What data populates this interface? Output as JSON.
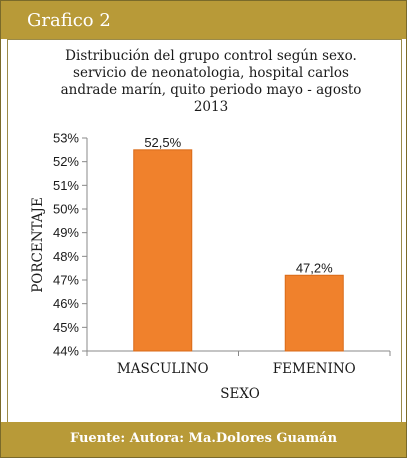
{
  "header": {
    "title": "Grafico 2"
  },
  "footer": {
    "text": "Fuente: Autora: Ma.Dolores Guamán"
  },
  "colors": {
    "bar": "#f0812c",
    "bar_edge": "#d96a18",
    "header_bg": "#b89a38"
  },
  "chart_data": {
    "type": "bar",
    "title_lines": [
      "Distribución del grupo control según sexo.",
      "servicio de neonatologia, hospital carlos",
      "andrade marín, quito periodo mayo - agosto",
      "2013"
    ],
    "categories": [
      "MASCULINO",
      "FEMENINO"
    ],
    "values": [
      52.5,
      47.2
    ],
    "value_labels": [
      "52,5%",
      "47,2%"
    ],
    "xlabel": "SEXO",
    "ylabel": "PORCENTAJE",
    "ylim": [
      44,
      53
    ],
    "yticks": [
      {
        "v": 53,
        "label": "53%"
      },
      {
        "v": 52,
        "label": "52%"
      },
      {
        "v": 51,
        "label": "51%"
      },
      {
        "v": 50,
        "label": "50%"
      },
      {
        "v": 49,
        "label": "49%"
      },
      {
        "v": 48,
        "label": "48%"
      },
      {
        "v": 47,
        "label": "47%"
      },
      {
        "v": 46,
        "label": "46%"
      },
      {
        "v": 45,
        "label": "45%"
      },
      {
        "v": 44,
        "label": "44%"
      }
    ],
    "grid": false,
    "legend": "none"
  }
}
